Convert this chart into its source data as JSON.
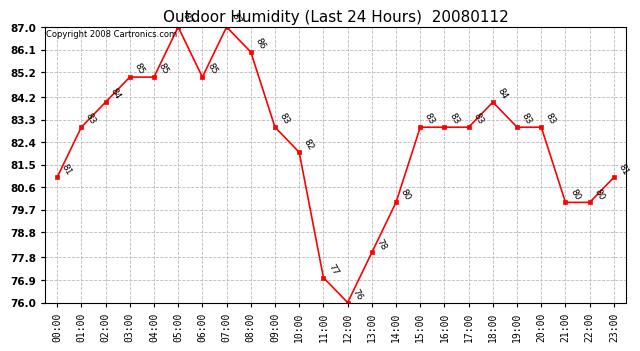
{
  "title": "Outdoor Humidity (Last 24 Hours)  20080112",
  "copyright": "Copyright 2008 Cartronics.com",
  "hours": [
    0,
    1,
    2,
    3,
    4,
    5,
    6,
    7,
    8,
    9,
    10,
    11,
    12,
    13,
    14,
    15,
    16,
    17,
    18,
    19,
    20,
    21,
    22,
    23
  ],
  "hour_labels": [
    "00:00",
    "01:00",
    "02:00",
    "03:00",
    "04:00",
    "05:00",
    "06:00",
    "07:00",
    "08:00",
    "09:00",
    "10:00",
    "11:00",
    "12:00",
    "13:00",
    "14:00",
    "15:00",
    "16:00",
    "17:00",
    "18:00",
    "19:00",
    "20:00",
    "21:00",
    "22:00",
    "23:00"
  ],
  "values": [
    81,
    83,
    84,
    85,
    85,
    87,
    85,
    87,
    86,
    83,
    82,
    77,
    76,
    78,
    80,
    83,
    83,
    83,
    84,
    83,
    83,
    80,
    80,
    81
  ],
  "ylim_min": 76.0,
  "ylim_max": 87.0,
  "yticks": [
    76.0,
    76.9,
    77.8,
    78.8,
    79.7,
    80.6,
    81.5,
    82.4,
    83.3,
    84.2,
    85.2,
    86.1,
    87.0
  ],
  "line_color": "red",
  "marker_color": "red",
  "bg_color": "white",
  "grid_color": "#bbbbbb",
  "title_fontsize": 11,
  "tick_fontsize": 7,
  "copyright_fontsize": 6,
  "annotation_fontsize": 6.5
}
